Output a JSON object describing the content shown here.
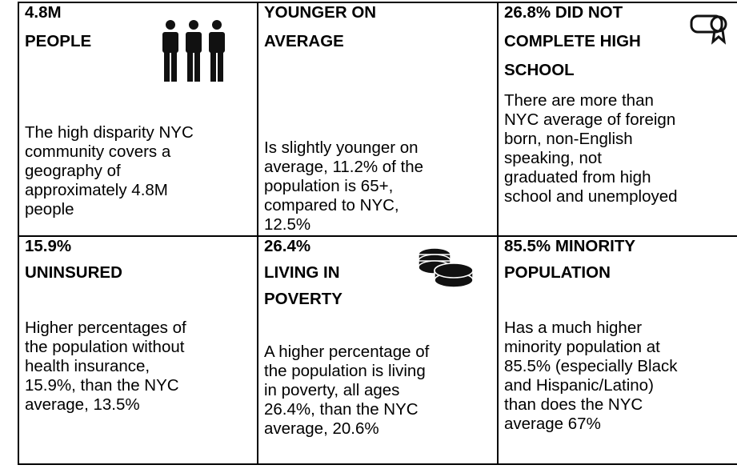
{
  "cells": [
    {
      "title": [
        "4.8M",
        "PEOPLE"
      ],
      "body": [
        "The high disparity NYC",
        "community covers a",
        "geography of",
        "approximately 4.8M",
        "people"
      ]
    },
    {
      "title": [
        "YOUNGER ON",
        "AVERAGE"
      ],
      "body": [
        "Is slightly younger on",
        "average, 11.2% of the",
        "population is 65+,",
        "compared to NYC,",
        "12.5%"
      ]
    },
    {
      "title": [
        "26.8% DID NOT",
        "COMPLETE HIGH",
        "SCHOOL"
      ],
      "body": [
        "There are more than",
        "NYC average of foreign",
        "born, non-English",
        "speaking, not",
        "graduated from high",
        "school and unemployed"
      ]
    },
    {
      "title": [
        "15.9%",
        "UNINSURED"
      ],
      "body": [
        "Higher percentages of",
        "the population without",
        "health insurance,",
        "15.9%, than the NYC",
        "average, 13.5%"
      ]
    },
    {
      "title": [
        "26.4%",
        "LIVING IN",
        "POVERTY"
      ],
      "body": [
        "A higher percentage of",
        "the population is living",
        "in poverty, all ages",
        "26.4%, than the NYC",
        "average, 20.6%"
      ]
    },
    {
      "title": [
        "85.5% MINORITY",
        "POPULATION"
      ],
      "body": [
        "Has a much higher",
        "minority population at",
        "85.5% (especially Black",
        "and Hispanic/Latino)",
        "than does the NYC",
        "average 67%"
      ]
    }
  ]
}
